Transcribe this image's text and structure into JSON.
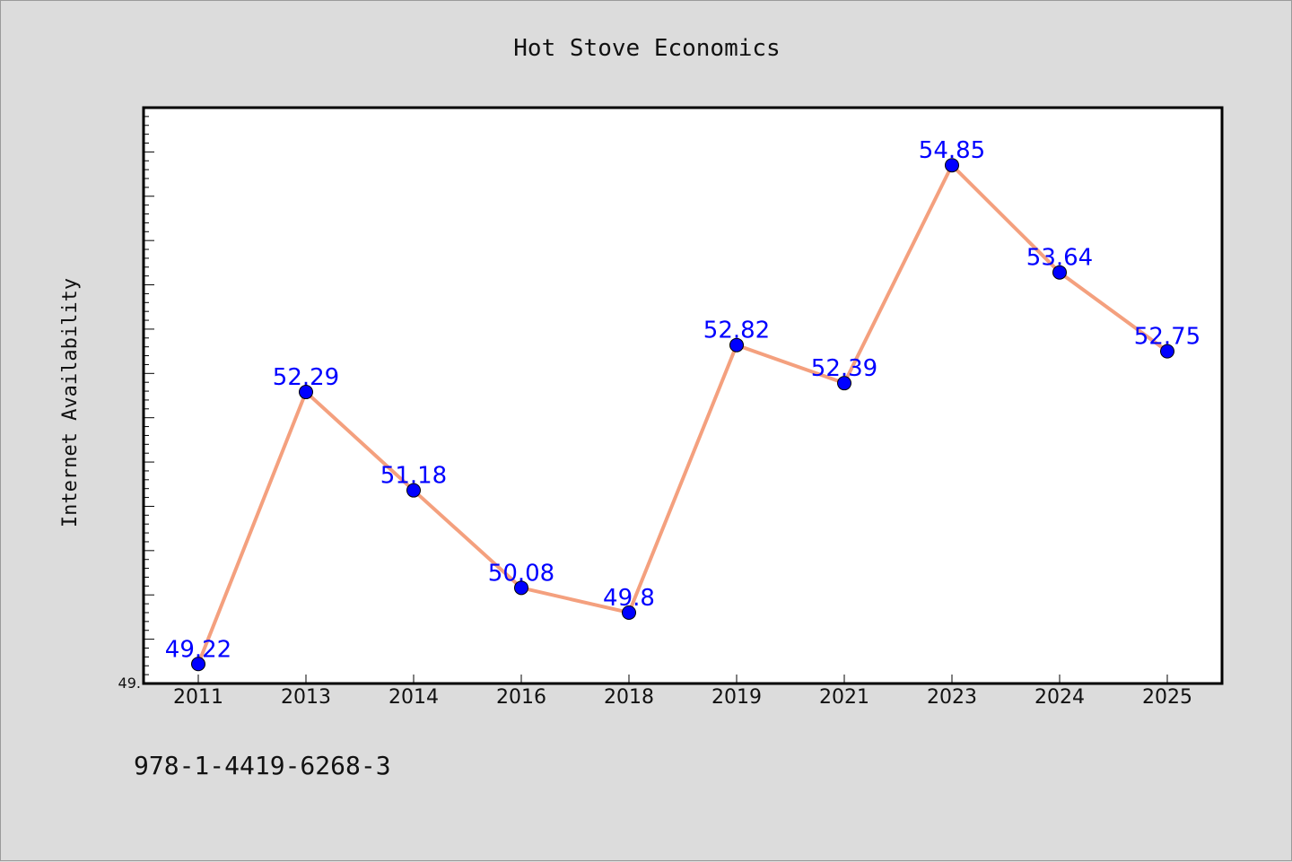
{
  "chart_data": {
    "type": "line",
    "title": "Hot Stove Economics",
    "xlabel": "",
    "ylabel": "Internet Availability",
    "categories": [
      "2011",
      "2013",
      "2014",
      "2016",
      "2018",
      "2019",
      "2021",
      "2023",
      "2024",
      "2025"
    ],
    "values": [
      49.22,
      52.29,
      51.18,
      50.08,
      49.8,
      52.82,
      52.39,
      54.85,
      53.64,
      52.75
    ],
    "data_labels": [
      "49.22",
      "52.29",
      "51.18",
      "50.08",
      "49.8",
      "52.82",
      "52.39",
      "54.85",
      "53.64",
      "52.75"
    ],
    "y_tick_label": "49.",
    "ylim": [
      49.0,
      55.5
    ],
    "grid": false,
    "line_color": "#f4a07e",
    "marker_color": "#0000ff"
  },
  "footer": {
    "isbn": "978-1-4419-6268-3"
  }
}
